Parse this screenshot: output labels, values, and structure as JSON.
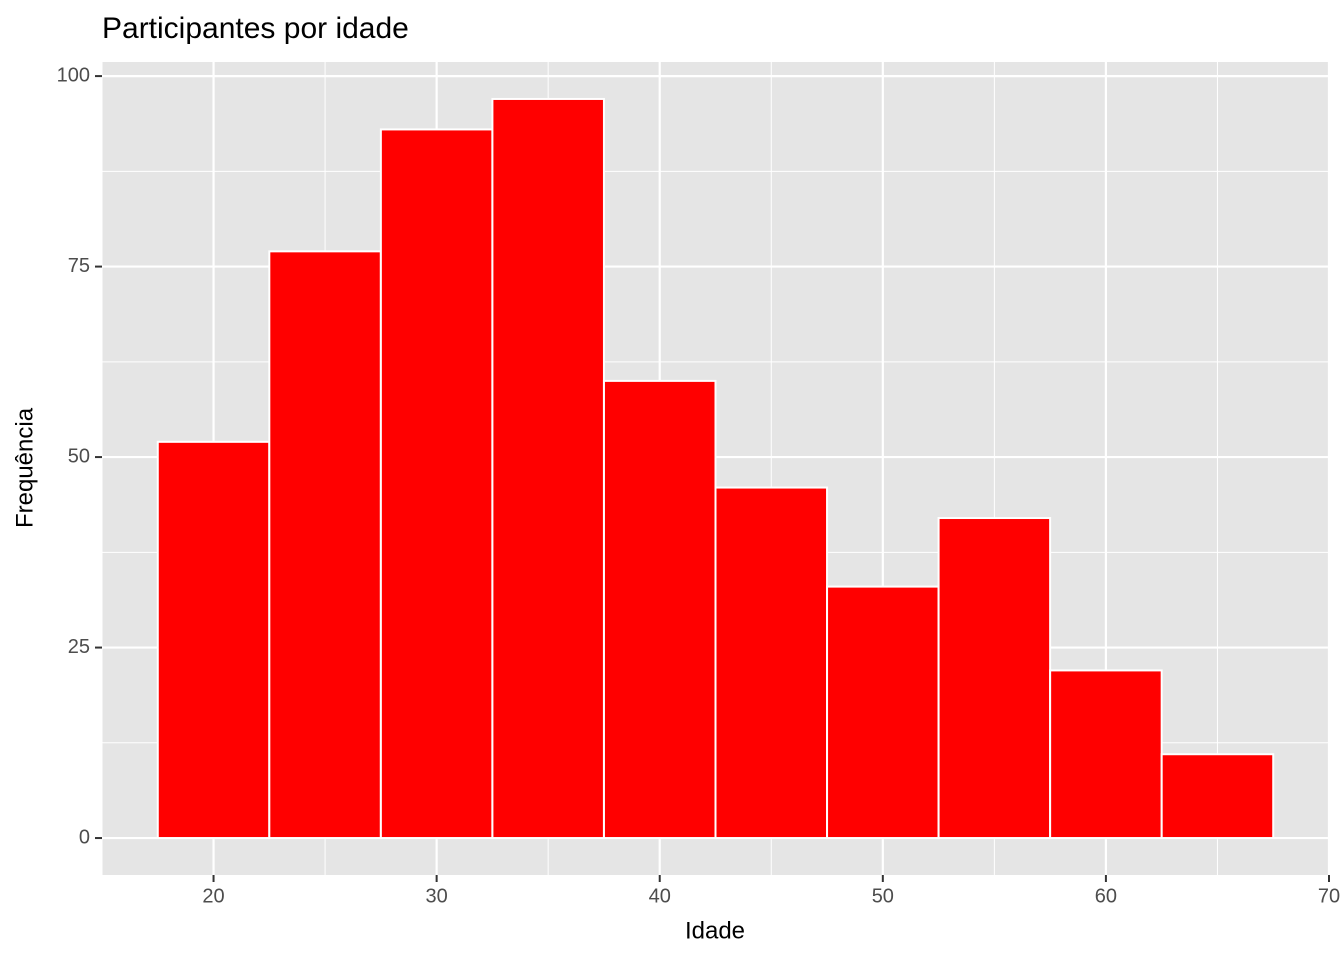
{
  "chart_data": {
    "type": "histogram",
    "title": "Participantes por idade",
    "x_label": "Idade",
    "y_label": "Frequência",
    "bins": [
      17.5,
      22.5,
      27.5,
      32.5,
      37.5,
      42.5,
      47.5,
      52.5,
      57.5,
      62.5,
      67.5
    ],
    "values": [
      52,
      77,
      93,
      97,
      60,
      46,
      33,
      42,
      22,
      11
    ],
    "color": "#ff0000",
    "edge_color": "#ffffff",
    "xlim": [
      15,
      70
    ],
    "xticks": [
      20,
      30,
      40,
      50,
      60,
      70
    ],
    "ylim": [
      -4.85,
      101.85
    ],
    "yticks": [
      0,
      25,
      50,
      75,
      100
    ],
    "grid": true
  }
}
